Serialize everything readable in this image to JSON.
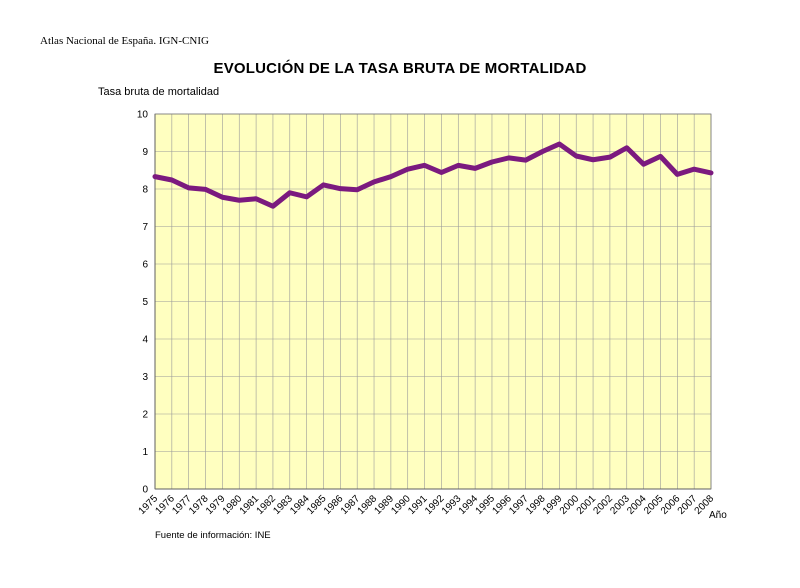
{
  "header": {
    "text": "Atlas Nacional de España. IGN-CNIG"
  },
  "footer": {
    "source": "Fuente de información: INE"
  },
  "colors": {
    "plot_background": "#ffffc0",
    "line": "#7b1a7f",
    "grid": "#999999"
  },
  "chart_data": {
    "type": "line",
    "title": "EVOLUCIÓN DE LA TASA BRUTA DE MORTALIDAD",
    "ylabel": "Tasa bruta de mortalidad",
    "xlabel": "Año",
    "ylim": [
      0,
      10
    ],
    "yticks": [
      0,
      1,
      2,
      3,
      4,
      5,
      6,
      7,
      8,
      9,
      10
    ],
    "grid": true,
    "x": [
      "1975",
      "1976",
      "1977",
      "1978",
      "1979",
      "1980",
      "1981",
      "1982",
      "1983",
      "1984",
      "1985",
      "1986",
      "1987",
      "1988",
      "1989",
      "1990",
      "1991",
      "1992",
      "1993",
      "1994",
      "1995",
      "1996",
      "1997",
      "1998",
      "1999",
      "2000",
      "2001",
      "2002",
      "2003",
      "2004",
      "2005",
      "2006",
      "2007",
      "2008"
    ],
    "series": [
      {
        "values": [
          8.33,
          8.24,
          8.03,
          7.99,
          7.78,
          7.7,
          7.74,
          7.54,
          7.9,
          7.79,
          8.11,
          8.01,
          7.98,
          8.19,
          8.33,
          8.53,
          8.63,
          8.44,
          8.63,
          8.55,
          8.72,
          8.83,
          8.77,
          9.0,
          9.2,
          8.88,
          8.78,
          8.85,
          9.1,
          8.66,
          8.87,
          8.39,
          8.53,
          8.43
        ]
      }
    ]
  }
}
